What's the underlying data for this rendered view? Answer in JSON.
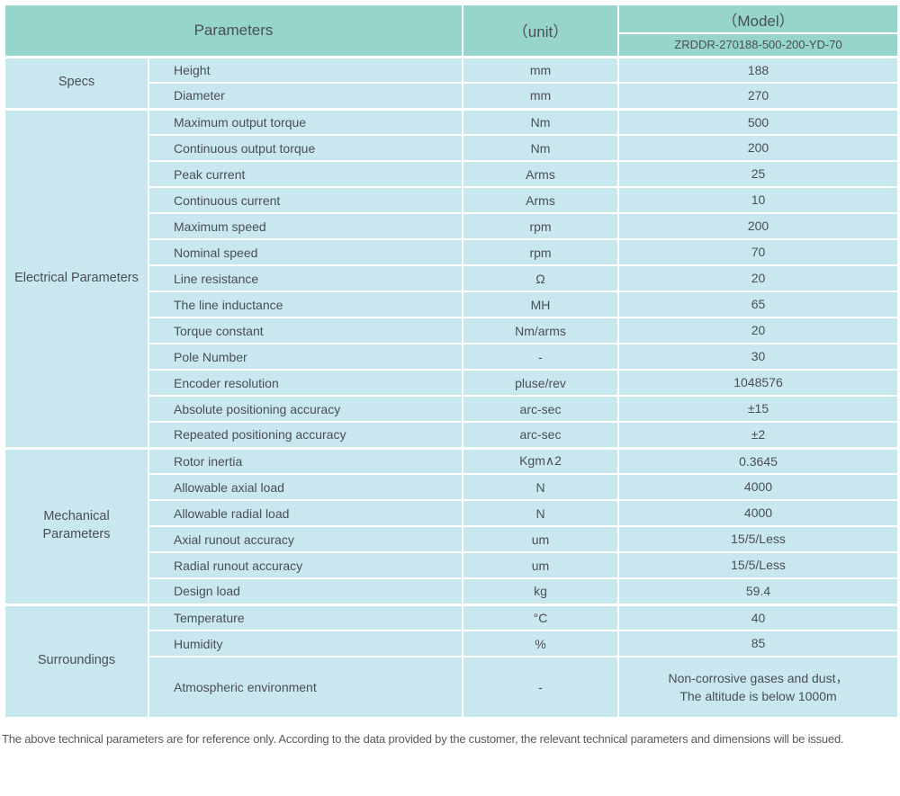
{
  "colors": {
    "header_bg": "#96d4cc",
    "row_bg": "#c9e7ee",
    "text_color": "#4a4f54",
    "note_color": "#595a5c"
  },
  "table": {
    "header": {
      "parameters_label": "Parameters",
      "unit_label": "（unit）",
      "model_label": "（Model）",
      "model_value": "ZRDDR-270188-500-200-YD-70"
    },
    "sections": [
      {
        "category": "Specs",
        "rows": [
          {
            "name": "Height",
            "unit": "mm",
            "value": "188"
          },
          {
            "name": "Diameter",
            "unit": "mm",
            "value": "270"
          }
        ]
      },
      {
        "category": "Electrical Parameters",
        "rows": [
          {
            "name": "Maximum output torque",
            "unit": "Nm",
            "value": "500"
          },
          {
            "name": "Continuous output torque",
            "unit": "Nm",
            "value": "200"
          },
          {
            "name": "Peak current",
            "unit": "Arms",
            "value": "25"
          },
          {
            "name": "Continuous current",
            "unit": "Arms",
            "value": "10"
          },
          {
            "name": "Maximum speed",
            "unit": "rpm",
            "value": "200"
          },
          {
            "name": "Nominal speed",
            "unit": "rpm",
            "value": "70"
          },
          {
            "name": "Line resistance",
            "unit": "Ω",
            "value": "20"
          },
          {
            "name": "The line inductance",
            "unit": "MH",
            "value": "65"
          },
          {
            "name": "Torque constant",
            "unit": "Nm/arms",
            "value": "20"
          },
          {
            "name": "Pole Number",
            "unit": "-",
            "value": "30"
          },
          {
            "name": "Encoder resolution",
            "unit": "pluse/rev",
            "value": "1048576"
          },
          {
            "name": "Absolute positioning accuracy",
            "unit": "arc-sec",
            "value": "±15"
          },
          {
            "name": "Repeated positioning accuracy",
            "unit": "arc-sec",
            "value": "±2"
          }
        ]
      },
      {
        "category": "Mechanical Parameters",
        "rows": [
          {
            "name": "Rotor inertia",
            "unit": "Kgm∧2",
            "value": "0.3645"
          },
          {
            "name": "Allowable axial load",
            "unit": "N",
            "value": "4000"
          },
          {
            "name": "Allowable radial load",
            "unit": "N",
            "value": "4000"
          },
          {
            "name": "Axial runout accuracy",
            "unit": "um",
            "value": "15/5/Less"
          },
          {
            "name": "Radial runout accuracy",
            "unit": "um",
            "value": "15/5/Less"
          },
          {
            "name": "Design load",
            "unit": "kg",
            "value": "59.4"
          }
        ]
      },
      {
        "category": "Surroundings",
        "rows": [
          {
            "name": "Temperature",
            "unit": "°C",
            "value": "40"
          },
          {
            "name": "Humidity",
            "unit": "%",
            "value": "85"
          },
          {
            "name": "Atmospheric environment",
            "unit": "-",
            "value": "Non-corrosive gases and dust，\nThe altitude is below 1000m",
            "tall": true
          }
        ]
      }
    ],
    "footer_note": "The above technical parameters are for reference only. According to the data provided by the customer, the relevant technical parameters and dimensions will be issued."
  }
}
